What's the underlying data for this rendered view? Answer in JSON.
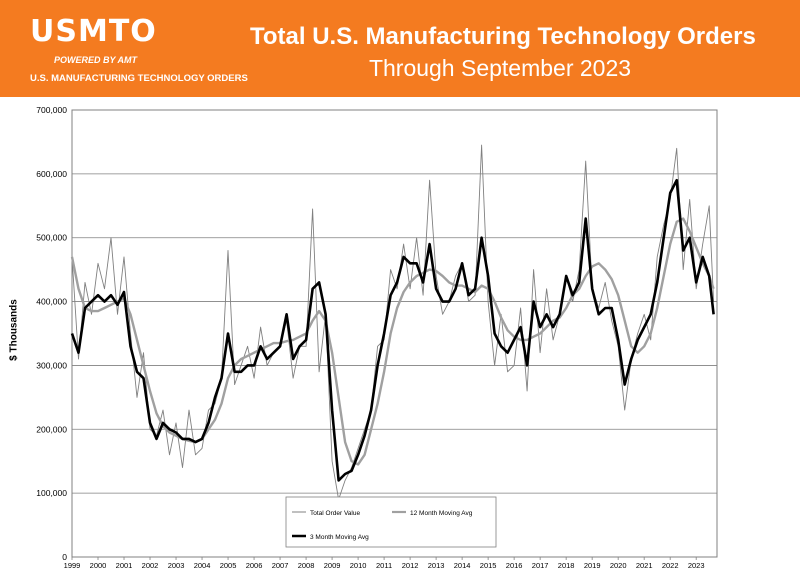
{
  "header": {
    "logo_text": "USMTO",
    "logo_powered": "POWERED BY AMT",
    "logo_subtitle": "U.S. MANUFACTURING TECHNOLOGY ORDERS",
    "title": "Total U.S. Manufacturing Technology Orders",
    "subtitle": "Through September 2023"
  },
  "colors": {
    "banner": "#f47b20",
    "total_series": "#808080",
    "ma12_series": "#a0a0a0",
    "ma3_series": "#000000",
    "grid": "#808080"
  },
  "chart_data": {
    "type": "line",
    "ylabel": "$ Thousands",
    "ylim": [
      0,
      700000
    ],
    "yticks": [
      0,
      100000,
      200000,
      300000,
      400000,
      500000,
      600000,
      700000
    ],
    "ytick_labels": [
      "0",
      "100,000",
      "200,000",
      "300,000",
      "400,000",
      "500,000",
      "600,000",
      "700,000"
    ],
    "xlim": [
      1999,
      2023.8
    ],
    "xticks": [
      "1999",
      "2000",
      "2001",
      "2002",
      "2003",
      "2004",
      "2005",
      "2006",
      "2007",
      "2008",
      "2009",
      "2010",
      "2011",
      "2012",
      "2013",
      "2014",
      "2015",
      "2016",
      "2017",
      "2018",
      "2019",
      "2020",
      "2021",
      "2022",
      "2023"
    ],
    "grid": true,
    "legend": [
      "Total Order Value",
      "12 Month Moving Avg",
      "3 Month Moving Avg"
    ],
    "legend_position": "bottom-center",
    "series": [
      {
        "name": "Total Order Value",
        "x": [
          1999.0,
          1999.25,
          1999.5,
          1999.75,
          2000.0,
          2000.25,
          2000.5,
          2000.75,
          2001.0,
          2001.25,
          2001.5,
          2001.75,
          2002.0,
          2002.25,
          2002.5,
          2002.75,
          2003.0,
          2003.25,
          2003.5,
          2003.75,
          2004.0,
          2004.25,
          2004.5,
          2004.75,
          2005.0,
          2005.25,
          2005.5,
          2005.75,
          2006.0,
          2006.25,
          2006.5,
          2006.75,
          2007.0,
          2007.25,
          2007.5,
          2007.75,
          2008.0,
          2008.25,
          2008.5,
          2008.75,
          2009.0,
          2009.25,
          2009.5,
          2009.75,
          2010.0,
          2010.25,
          2010.5,
          2010.75,
          2011.0,
          2011.25,
          2011.5,
          2011.75,
          2012.0,
          2012.25,
          2012.5,
          2012.75,
          2013.0,
          2013.25,
          2013.5,
          2013.75,
          2014.0,
          2014.25,
          2014.5,
          2014.75,
          2015.0,
          2015.25,
          2015.5,
          2015.75,
          2016.0,
          2016.25,
          2016.5,
          2016.75,
          2017.0,
          2017.25,
          2017.5,
          2017.75,
          2018.0,
          2018.25,
          2018.5,
          2018.75,
          2019.0,
          2019.25,
          2019.5,
          2019.75,
          2020.0,
          2020.25,
          2020.5,
          2020.75,
          2021.0,
          2021.25,
          2021.5,
          2021.75,
          2022.0,
          2022.25,
          2022.5,
          2022.75,
          2023.0,
          2023.25,
          2023.5,
          2023.67
        ],
        "values": [
          470000,
          310000,
          430000,
          380000,
          460000,
          420000,
          500000,
          380000,
          470000,
          350000,
          250000,
          320000,
          200000,
          190000,
          230000,
          160000,
          210000,
          140000,
          230000,
          160000,
          170000,
          230000,
          240000,
          280000,
          480000,
          270000,
          300000,
          330000,
          280000,
          360000,
          300000,
          320000,
          330000,
          370000,
          280000,
          330000,
          330000,
          545000,
          290000,
          380000,
          150000,
          90000,
          120000,
          140000,
          170000,
          200000,
          230000,
          330000,
          340000,
          450000,
          420000,
          490000,
          420000,
          500000,
          410000,
          590000,
          440000,
          380000,
          400000,
          440000,
          460000,
          400000,
          410000,
          645000,
          400000,
          300000,
          380000,
          290000,
          300000,
          390000,
          260000,
          450000,
          320000,
          420000,
          340000,
          380000,
          440000,
          400000,
          450000,
          620000,
          420000,
          390000,
          430000,
          370000,
          330000,
          230000,
          310000,
          350000,
          380000,
          340000,
          470000,
          520000,
          560000,
          640000,
          450000,
          560000,
          420000,
          490000,
          550000,
          400000
        ]
      },
      {
        "name": "12 Month Moving Avg",
        "x": [
          1999.0,
          1999.25,
          1999.5,
          1999.75,
          2000.0,
          2000.25,
          2000.5,
          2000.75,
          2001.0,
          2001.25,
          2001.5,
          2001.75,
          2002.0,
          2002.25,
          2002.5,
          2002.75,
          2003.0,
          2003.25,
          2003.5,
          2003.75,
          2004.0,
          2004.25,
          2004.5,
          2004.75,
          2005.0,
          2005.25,
          2005.5,
          2005.75,
          2006.0,
          2006.25,
          2006.5,
          2006.75,
          2007.0,
          2007.25,
          2007.5,
          2007.75,
          2008.0,
          2008.25,
          2008.5,
          2008.75,
          2009.0,
          2009.25,
          2009.5,
          2009.75,
          2010.0,
          2010.25,
          2010.5,
          2010.75,
          2011.0,
          2011.25,
          2011.5,
          2011.75,
          2012.0,
          2012.25,
          2012.5,
          2012.75,
          2013.0,
          2013.25,
          2013.5,
          2013.75,
          2014.0,
          2014.25,
          2014.5,
          2014.75,
          2015.0,
          2015.25,
          2015.5,
          2015.75,
          2016.0,
          2016.25,
          2016.5,
          2016.75,
          2017.0,
          2017.25,
          2017.5,
          2017.75,
          2018.0,
          2018.25,
          2018.5,
          2018.75,
          2019.0,
          2019.25,
          2019.5,
          2019.75,
          2020.0,
          2020.25,
          2020.5,
          2020.75,
          2021.0,
          2021.25,
          2021.5,
          2021.75,
          2022.0,
          2022.25,
          2022.5,
          2022.75,
          2023.0,
          2023.25,
          2023.5,
          2023.67
        ],
        "values": [
          470000,
          420000,
          390000,
          385000,
          385000,
          390000,
          395000,
          400000,
          405000,
          380000,
          340000,
          300000,
          260000,
          225000,
          205000,
          195000,
          190000,
          185000,
          182000,
          180000,
          185000,
          200000,
          215000,
          240000,
          280000,
          300000,
          310000,
          315000,
          320000,
          325000,
          330000,
          335000,
          335000,
          338000,
          340000,
          345000,
          350000,
          370000,
          385000,
          370000,
          320000,
          250000,
          180000,
          150000,
          145000,
          160000,
          200000,
          240000,
          290000,
          350000,
          390000,
          415000,
          430000,
          440000,
          445000,
          450000,
          448000,
          440000,
          430000,
          425000,
          425000,
          420000,
          415000,
          425000,
          420000,
          400000,
          375000,
          355000,
          345000,
          340000,
          340000,
          345000,
          350000,
          360000,
          370000,
          375000,
          390000,
          410000,
          420000,
          440000,
          455000,
          460000,
          450000,
          435000,
          410000,
          370000,
          330000,
          320000,
          330000,
          350000,
          390000,
          440000,
          490000,
          525000,
          530000,
          510000,
          485000,
          460000,
          440000,
          420000
        ]
      },
      {
        "name": "3 Month Moving Avg",
        "x": [
          1999.0,
          1999.25,
          1999.5,
          1999.75,
          2000.0,
          2000.25,
          2000.5,
          2000.75,
          2001.0,
          2001.25,
          2001.5,
          2001.75,
          2002.0,
          2002.25,
          2002.5,
          2002.75,
          2003.0,
          2003.25,
          2003.5,
          2003.75,
          2004.0,
          2004.25,
          2004.5,
          2004.75,
          2005.0,
          2005.25,
          2005.5,
          2005.75,
          2006.0,
          2006.25,
          2006.5,
          2006.75,
          2007.0,
          2007.25,
          2007.5,
          2007.75,
          2008.0,
          2008.25,
          2008.5,
          2008.75,
          2009.0,
          2009.25,
          2009.5,
          2009.75,
          2010.0,
          2010.25,
          2010.5,
          2010.75,
          2011.0,
          2011.25,
          2011.5,
          2011.75,
          2012.0,
          2012.25,
          2012.5,
          2012.75,
          2013.0,
          2013.25,
          2013.5,
          2013.75,
          2014.0,
          2014.25,
          2014.5,
          2014.75,
          2015.0,
          2015.25,
          2015.5,
          2015.75,
          2016.0,
          2016.25,
          2016.5,
          2016.75,
          2017.0,
          2017.25,
          2017.5,
          2017.75,
          2018.0,
          2018.25,
          2018.5,
          2018.75,
          2019.0,
          2019.25,
          2019.5,
          2019.75,
          2020.0,
          2020.25,
          2020.5,
          2020.75,
          2021.0,
          2021.25,
          2021.5,
          2021.75,
          2022.0,
          2022.25,
          2022.5,
          2022.75,
          2023.0,
          2023.25,
          2023.5,
          2023.67
        ],
        "values": [
          350000,
          320000,
          390000,
          400000,
          410000,
          400000,
          410000,
          395000,
          415000,
          330000,
          290000,
          280000,
          210000,
          185000,
          210000,
          200000,
          195000,
          185000,
          185000,
          180000,
          185000,
          210000,
          250000,
          280000,
          350000,
          290000,
          290000,
          300000,
          300000,
          330000,
          310000,
          320000,
          330000,
          380000,
          310000,
          330000,
          340000,
          420000,
          430000,
          380000,
          230000,
          120000,
          130000,
          135000,
          160000,
          190000,
          230000,
          300000,
          350000,
          410000,
          430000,
          470000,
          460000,
          460000,
          430000,
          490000,
          420000,
          400000,
          400000,
          420000,
          460000,
          410000,
          420000,
          500000,
          440000,
          350000,
          330000,
          320000,
          340000,
          360000,
          300000,
          400000,
          360000,
          380000,
          360000,
          380000,
          440000,
          410000,
          430000,
          530000,
          420000,
          380000,
          390000,
          390000,
          340000,
          270000,
          310000,
          340000,
          360000,
          380000,
          430000,
          500000,
          570000,
          590000,
          480000,
          500000,
          430000,
          470000,
          440000,
          380000
        ]
      }
    ]
  }
}
